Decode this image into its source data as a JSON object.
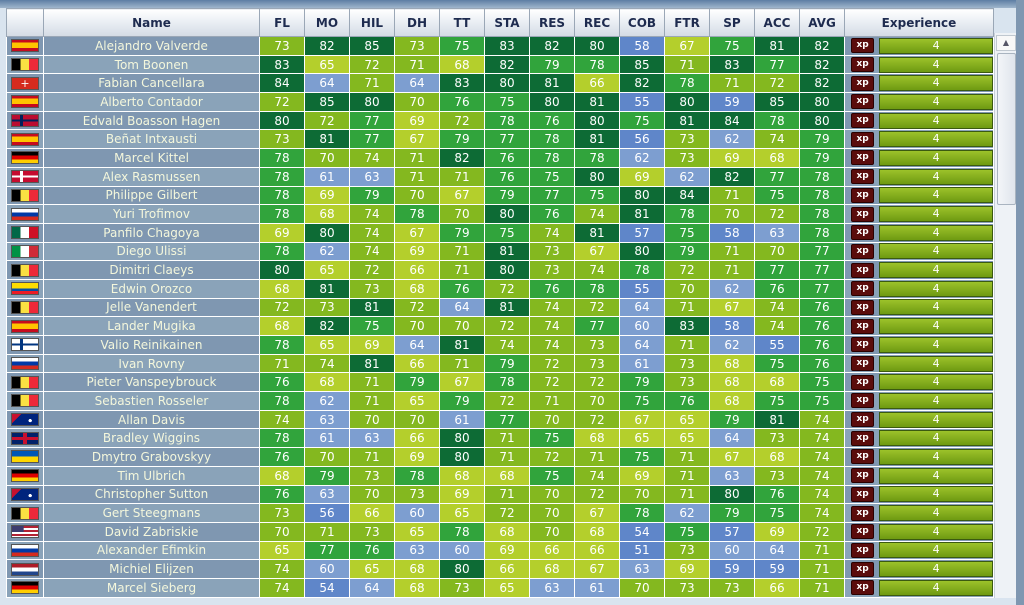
{
  "columns": [
    "Name",
    "FL",
    "MO",
    "HIL",
    "DH",
    "TT",
    "STA",
    "RES",
    "REC",
    "COB",
    "FTR",
    "SP",
    "ACC",
    "AVG",
    "Experience"
  ],
  "xp_badge": "xp",
  "rows": [
    {
      "flag": "es",
      "name": "Alejandro Valverde",
      "stats": [
        73,
        82,
        85,
        73,
        75,
        83,
        82,
        80,
        58,
        67,
        75,
        81,
        82
      ],
      "xp": "4"
    },
    {
      "flag": "be",
      "name": "Tom Boonen",
      "stats": [
        83,
        65,
        72,
        71,
        68,
        82,
        79,
        78,
        85,
        71,
        83,
        77,
        82
      ],
      "xp": "4"
    },
    {
      "flag": "ch",
      "name": "Fabian Cancellara",
      "stats": [
        84,
        64,
        71,
        64,
        83,
        80,
        81,
        66,
        82,
        78,
        71,
        72,
        82
      ],
      "xp": "4"
    },
    {
      "flag": "es",
      "name": "Alberto Contador",
      "stats": [
        72,
        85,
        80,
        70,
        76,
        75,
        80,
        81,
        55,
        80,
        59,
        85,
        80
      ],
      "xp": "4"
    },
    {
      "flag": "no",
      "name": "Edvald Boasson Hagen",
      "stats": [
        80,
        72,
        77,
        69,
        72,
        78,
        76,
        80,
        75,
        81,
        84,
        78,
        80
      ],
      "xp": "4"
    },
    {
      "flag": "es",
      "name": "Beñat Intxausti",
      "stats": [
        73,
        81,
        77,
        67,
        79,
        77,
        78,
        81,
        56,
        73,
        62,
        74,
        79
      ],
      "xp": "4"
    },
    {
      "flag": "de",
      "name": "Marcel Kittel",
      "stats": [
        78,
        70,
        74,
        71,
        82,
        76,
        78,
        78,
        62,
        73,
        69,
        68,
        79
      ],
      "xp": "4"
    },
    {
      "flag": "dk",
      "name": "Alex Rasmussen",
      "stats": [
        78,
        61,
        63,
        71,
        71,
        76,
        75,
        80,
        69,
        62,
        82,
        77,
        78
      ],
      "xp": "4"
    },
    {
      "flag": "be",
      "name": "Philippe Gilbert",
      "stats": [
        78,
        69,
        79,
        70,
        67,
        79,
        77,
        75,
        80,
        84,
        71,
        75,
        78
      ],
      "xp": "4"
    },
    {
      "flag": "ru",
      "name": "Yuri Trofimov",
      "stats": [
        78,
        68,
        74,
        78,
        70,
        80,
        76,
        74,
        81,
        78,
        70,
        72,
        78
      ],
      "xp": "4"
    },
    {
      "flag": "mx",
      "name": "Panfilo Chagoya",
      "stats": [
        69,
        80,
        74,
        67,
        79,
        75,
        74,
        81,
        57,
        75,
        58,
        63,
        78
      ],
      "xp": "4"
    },
    {
      "flag": "it",
      "name": "Diego Ulissi",
      "stats": [
        78,
        62,
        74,
        69,
        71,
        81,
        73,
        67,
        80,
        79,
        71,
        70,
        77
      ],
      "xp": "4"
    },
    {
      "flag": "be",
      "name": "Dimitri Claeys",
      "stats": [
        80,
        65,
        72,
        66,
        71,
        80,
        73,
        74,
        78,
        72,
        71,
        77,
        77
      ],
      "xp": "4"
    },
    {
      "flag": "ec",
      "name": "Edwin Orozco",
      "stats": [
        68,
        81,
        73,
        68,
        76,
        72,
        76,
        78,
        55,
        70,
        62,
        76,
        77
      ],
      "xp": "4"
    },
    {
      "flag": "be",
      "name": "Jelle Vanendert",
      "stats": [
        72,
        73,
        81,
        72,
        64,
        81,
        74,
        72,
        64,
        71,
        67,
        74,
        76
      ],
      "xp": "4"
    },
    {
      "flag": "es",
      "name": "Lander Mugika",
      "stats": [
        68,
        82,
        75,
        70,
        70,
        72,
        74,
        77,
        60,
        83,
        58,
        74,
        76
      ],
      "xp": "4"
    },
    {
      "flag": "fi",
      "name": "Valio Reinikainen",
      "stats": [
        78,
        65,
        69,
        64,
        81,
        74,
        74,
        73,
        64,
        71,
        62,
        55,
        76
      ],
      "xp": "4"
    },
    {
      "flag": "ru",
      "name": "Ivan Rovny",
      "stats": [
        71,
        74,
        81,
        66,
        71,
        79,
        72,
        73,
        61,
        73,
        68,
        75,
        76
      ],
      "xp": "4"
    },
    {
      "flag": "be",
      "name": "Pieter Vanspeybrouck",
      "stats": [
        76,
        68,
        71,
        79,
        67,
        78,
        72,
        72,
        79,
        73,
        68,
        68,
        75
      ],
      "xp": "4"
    },
    {
      "flag": "be",
      "name": "Sebastien Rosseler",
      "stats": [
        78,
        62,
        71,
        65,
        79,
        72,
        71,
        70,
        75,
        76,
        68,
        75,
        75
      ],
      "xp": "4"
    },
    {
      "flag": "au",
      "name": "Allan Davis",
      "stats": [
        74,
        63,
        70,
        70,
        61,
        77,
        70,
        72,
        67,
        65,
        79,
        81,
        74
      ],
      "xp": "4"
    },
    {
      "flag": "gb",
      "name": "Bradley Wiggins",
      "stats": [
        78,
        61,
        63,
        66,
        80,
        71,
        75,
        68,
        65,
        65,
        64,
        73,
        74
      ],
      "xp": "4"
    },
    {
      "flag": "ua",
      "name": "Dmytro Grabovskyy",
      "stats": [
        76,
        70,
        71,
        69,
        80,
        71,
        72,
        71,
        75,
        71,
        67,
        68,
        74
      ],
      "xp": "4"
    },
    {
      "flag": "de",
      "name": "Tim Ulbrich",
      "stats": [
        68,
        79,
        73,
        78,
        68,
        68,
        75,
        74,
        69,
        71,
        63,
        73,
        74
      ],
      "xp": "4"
    },
    {
      "flag": "au",
      "name": "Christopher Sutton",
      "stats": [
        76,
        63,
        70,
        73,
        69,
        71,
        70,
        72,
        70,
        71,
        80,
        76,
        74
      ],
      "xp": "4"
    },
    {
      "flag": "be",
      "name": "Gert Steegmans",
      "stats": [
        73,
        56,
        66,
        60,
        65,
        72,
        70,
        67,
        78,
        62,
        79,
        75,
        74
      ],
      "xp": "4"
    },
    {
      "flag": "us",
      "name": "David Zabriskie",
      "stats": [
        70,
        71,
        73,
        65,
        78,
        68,
        70,
        68,
        54,
        75,
        57,
        69,
        72
      ],
      "xp": "4"
    },
    {
      "flag": "ru",
      "name": "Alexander Efimkin",
      "stats": [
        65,
        77,
        76,
        63,
        60,
        69,
        66,
        66,
        51,
        73,
        60,
        64,
        71
      ],
      "xp": "4"
    },
    {
      "flag": "nl",
      "name": "Michiel Elijzen",
      "stats": [
        74,
        60,
        65,
        68,
        80,
        66,
        68,
        67,
        63,
        69,
        59,
        59,
        71
      ],
      "xp": "4"
    },
    {
      "flag": "de",
      "name": "Marcel Sieberg",
      "stats": [
        74,
        54,
        64,
        68,
        73,
        65,
        63,
        61,
        70,
        73,
        73,
        66,
        71
      ],
      "xp": "4"
    }
  ],
  "colors": {
    "tier_dark_green": "#0d6b35",
    "tier_green": "#31a43c",
    "tier_lime": "#84b81f",
    "tier_yellow_green": "#b4cf2c",
    "tier_light_blue": "#7d9ed0",
    "tier_blue": "#5f86c9"
  }
}
